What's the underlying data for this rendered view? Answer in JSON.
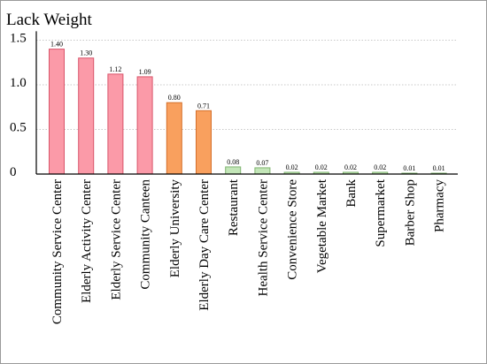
{
  "chart_data": {
    "type": "bar",
    "title": "",
    "xlabel": "",
    "ylabel": "Lack Weight",
    "ylim": [
      0,
      1.6
    ],
    "yticks": [
      0,
      0.5,
      1.0,
      1.5
    ],
    "ytick_labels": [
      "0",
      "0.5",
      "1.0",
      "1.5"
    ],
    "grid": "horizontal dotted",
    "categories": [
      "Community Service Center",
      "Elderly Activity Center",
      "Elderly Service Center",
      "Community Canteen",
      "Elderly University",
      "Elderly Day Care Center",
      "Restaurant",
      "Health Service Center",
      "Convenience Store",
      "Vegetable Market",
      "Bank",
      "Supermarket",
      "Barber Shop",
      "Pharmacy"
    ],
    "values": [
      1.4,
      1.3,
      1.12,
      1.09,
      0.8,
      0.71,
      0.08,
      0.07,
      0.02,
      0.02,
      0.02,
      0.02,
      0.01,
      0.01
    ],
    "value_labels": [
      "1.40",
      "1.30",
      "1.12",
      "1.09",
      "0.80",
      "0.71",
      "0.08",
      "0.07",
      "0.02",
      "0.02",
      "0.02",
      "0.02",
      "0.01",
      "0.01"
    ],
    "bar_colors": [
      "#fb9aa8",
      "#fb9aa8",
      "#fb9aa8",
      "#fb9aa8",
      "#f9a05e",
      "#f9a05e",
      "#c3e6b8",
      "#c3e6b8",
      "#c3e6b8",
      "#c3e6b8",
      "#c3e6b8",
      "#c3e6b8",
      "#c3e6b8",
      "#c3e6b8"
    ],
    "bar_edge_colors": [
      "#d9546a",
      "#d9546a",
      "#d9546a",
      "#d9546a",
      "#d46f2a",
      "#d46f2a",
      "#7fb46f",
      "#7fb46f",
      "#7fb46f",
      "#7fb46f",
      "#7fb46f",
      "#7fb46f",
      "#7fb46f",
      "#7fb46f"
    ]
  }
}
